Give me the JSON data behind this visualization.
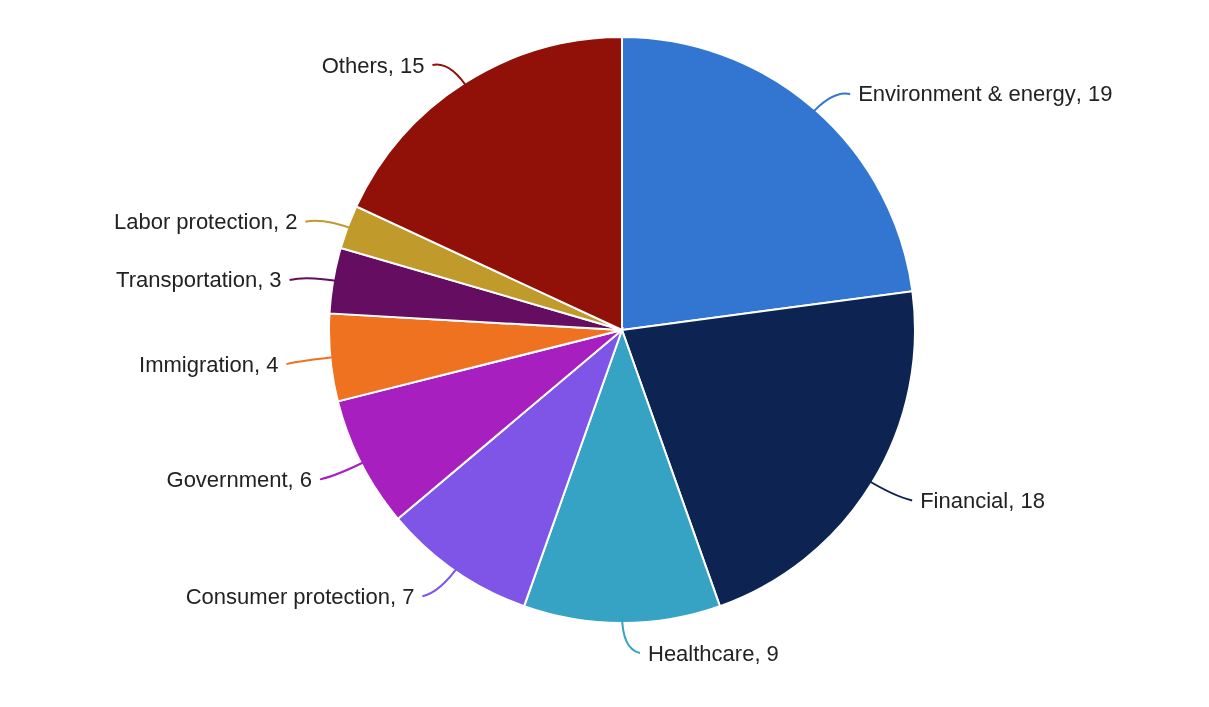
{
  "chart_data": {
    "type": "pie",
    "categories": [
      "Environment & energy",
      "Financial",
      "Healthcare",
      "Consumer protection",
      "Government",
      "Immigration",
      "Transportation",
      "Labor protection",
      "Others"
    ],
    "values": [
      19,
      18,
      9,
      7,
      6,
      4,
      3,
      2,
      15
    ],
    "value_labels": [
      ", 19",
      ", 18",
      ", 9",
      ", 7",
      ", 6",
      ", 4",
      ", 3",
      ", 2",
      ", 15"
    ],
    "colors": [
      "#3276d1",
      "#0d2453",
      "#36a3c4",
      "#7f55e8",
      "#a71fbf",
      "#ee7220",
      "#650d61",
      "#c09a2a",
      "#911109"
    ],
    "legend": false
  }
}
